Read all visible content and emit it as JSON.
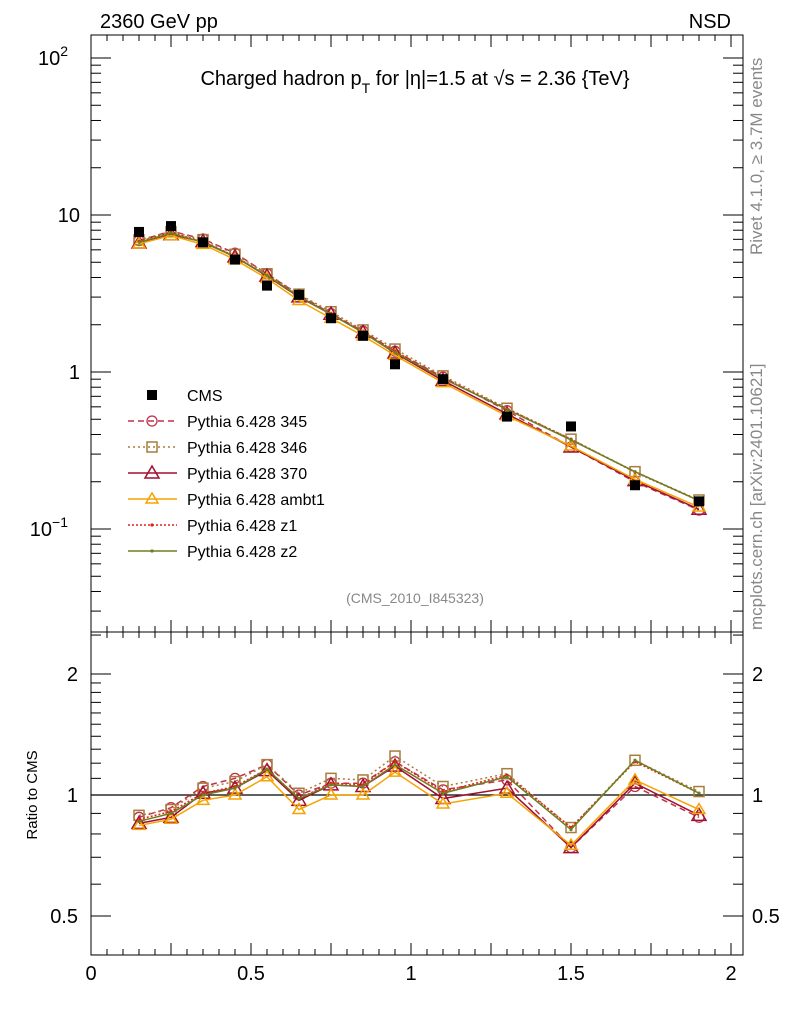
{
  "header": {
    "left": "2360 GeV pp",
    "right": "NSD"
  },
  "side_text": {
    "rivet": "Rivet 4.1.0, ≥ 3.7M events",
    "mcplots": "mcplots.cern.ch [arXiv:2401.10621]"
  },
  "analysis_id": "(CMS_2010_I845323)",
  "chart_data": {
    "type": "scatter",
    "title": "Charged hadron p_T for |η|=1.5 at √s = 2.36 {TeV}",
    "title_parts": {
      "a": "Charged hadron p",
      "sub": "T",
      "b": " for |η|=1.5 at √s = 2.36 {TeV}"
    },
    "xlabel": "",
    "ylabel": "",
    "ratio_ylabel": "Ratio to CMS",
    "xlim": [
      0,
      2.0375
    ],
    "ylim": [
      0.022,
      140
    ],
    "yscale": "log",
    "ratio_ylim": [
      0.4,
      2.54
    ],
    "x_ticks": [
      "0",
      "0.5",
      "1",
      "1.5",
      "2"
    ],
    "x_tick_values": [
      0,
      0.5,
      1,
      1.5,
      2
    ],
    "y_ticks": [
      {
        "base": "10",
        "exp": "2",
        "value": 100
      },
      {
        "base": "10",
        "exp": "",
        "value": 10
      },
      {
        "base": "1",
        "exp": "",
        "value": 1
      },
      {
        "base": "10",
        "exp": "−1",
        "value": 0.1
      }
    ],
    "ratio_ticks": [
      {
        "label": "2",
        "value": 2
      },
      {
        "label": "1",
        "value": 1
      },
      {
        "label": "0.5",
        "value": 0.5
      }
    ],
    "legend_position": "left-middle",
    "x": [
      0.15,
      0.25,
      0.35,
      0.45,
      0.55,
      0.65,
      0.75,
      0.85,
      0.95,
      1.1,
      1.3,
      1.5,
      1.7,
      1.9
    ],
    "data": {
      "name": "CMS",
      "values": [
        7.8,
        8.5,
        6.7,
        5.2,
        3.55,
        3.1,
        2.2,
        1.7,
        1.12,
        0.9,
        0.52,
        0.45,
        0.19,
        0.15
      ]
    },
    "series": [
      {
        "name": "Pythia 6.428 345",
        "color": "#c0304b",
        "dash": "6,4",
        "marker": "circle",
        "ratio": [
          0.88,
          0.93,
          1.05,
          1.1,
          1.19,
          1.0,
          1.07,
          1.07,
          1.21,
          1.03,
          1.09,
          0.74,
          1.05,
          0.88
        ]
      },
      {
        "name": "Pythia 6.428 346",
        "color": "#a87c3c",
        "dash": "2,3",
        "marker": "square",
        "ratio": [
          0.89,
          0.92,
          1.04,
          1.08,
          1.19,
          1.01,
          1.1,
          1.09,
          1.25,
          1.05,
          1.13,
          0.83,
          1.22,
          1.02
        ]
      },
      {
        "name": "Pythia 6.428 370",
        "color": "#a01030",
        "dash": "",
        "marker": "triangle",
        "ratio": [
          0.85,
          0.88,
          1.01,
          1.04,
          1.15,
          0.97,
          1.06,
          1.05,
          1.18,
          0.98,
          1.04,
          0.74,
          1.07,
          0.89
        ]
      },
      {
        "name": "Pythia 6.428 ambt1",
        "color": "#f5a300",
        "dash": "",
        "marker": "triangle-small",
        "ratio": [
          0.84,
          0.87,
          0.97,
          1.0,
          1.11,
          0.92,
          1.0,
          1.0,
          1.14,
          0.95,
          1.01,
          0.75,
          1.09,
          0.92
        ]
      },
      {
        "name": "Pythia 6.428 z1",
        "color": "#e8201a",
        "dash": "2,2",
        "marker": "dot",
        "ratio": [
          0.87,
          0.91,
          1.01,
          1.05,
          1.16,
          0.98,
          1.07,
          1.06,
          1.21,
          1.02,
          1.12,
          0.83,
          1.21,
          1.01
        ]
      },
      {
        "name": "Pythia 6.428 z2",
        "color": "#6b8020",
        "dash": "",
        "marker": "dot",
        "ratio": [
          0.86,
          0.9,
          1.0,
          1.04,
          1.16,
          0.98,
          1.06,
          1.05,
          1.19,
          1.01,
          1.11,
          0.82,
          1.22,
          1.01
        ]
      }
    ]
  }
}
